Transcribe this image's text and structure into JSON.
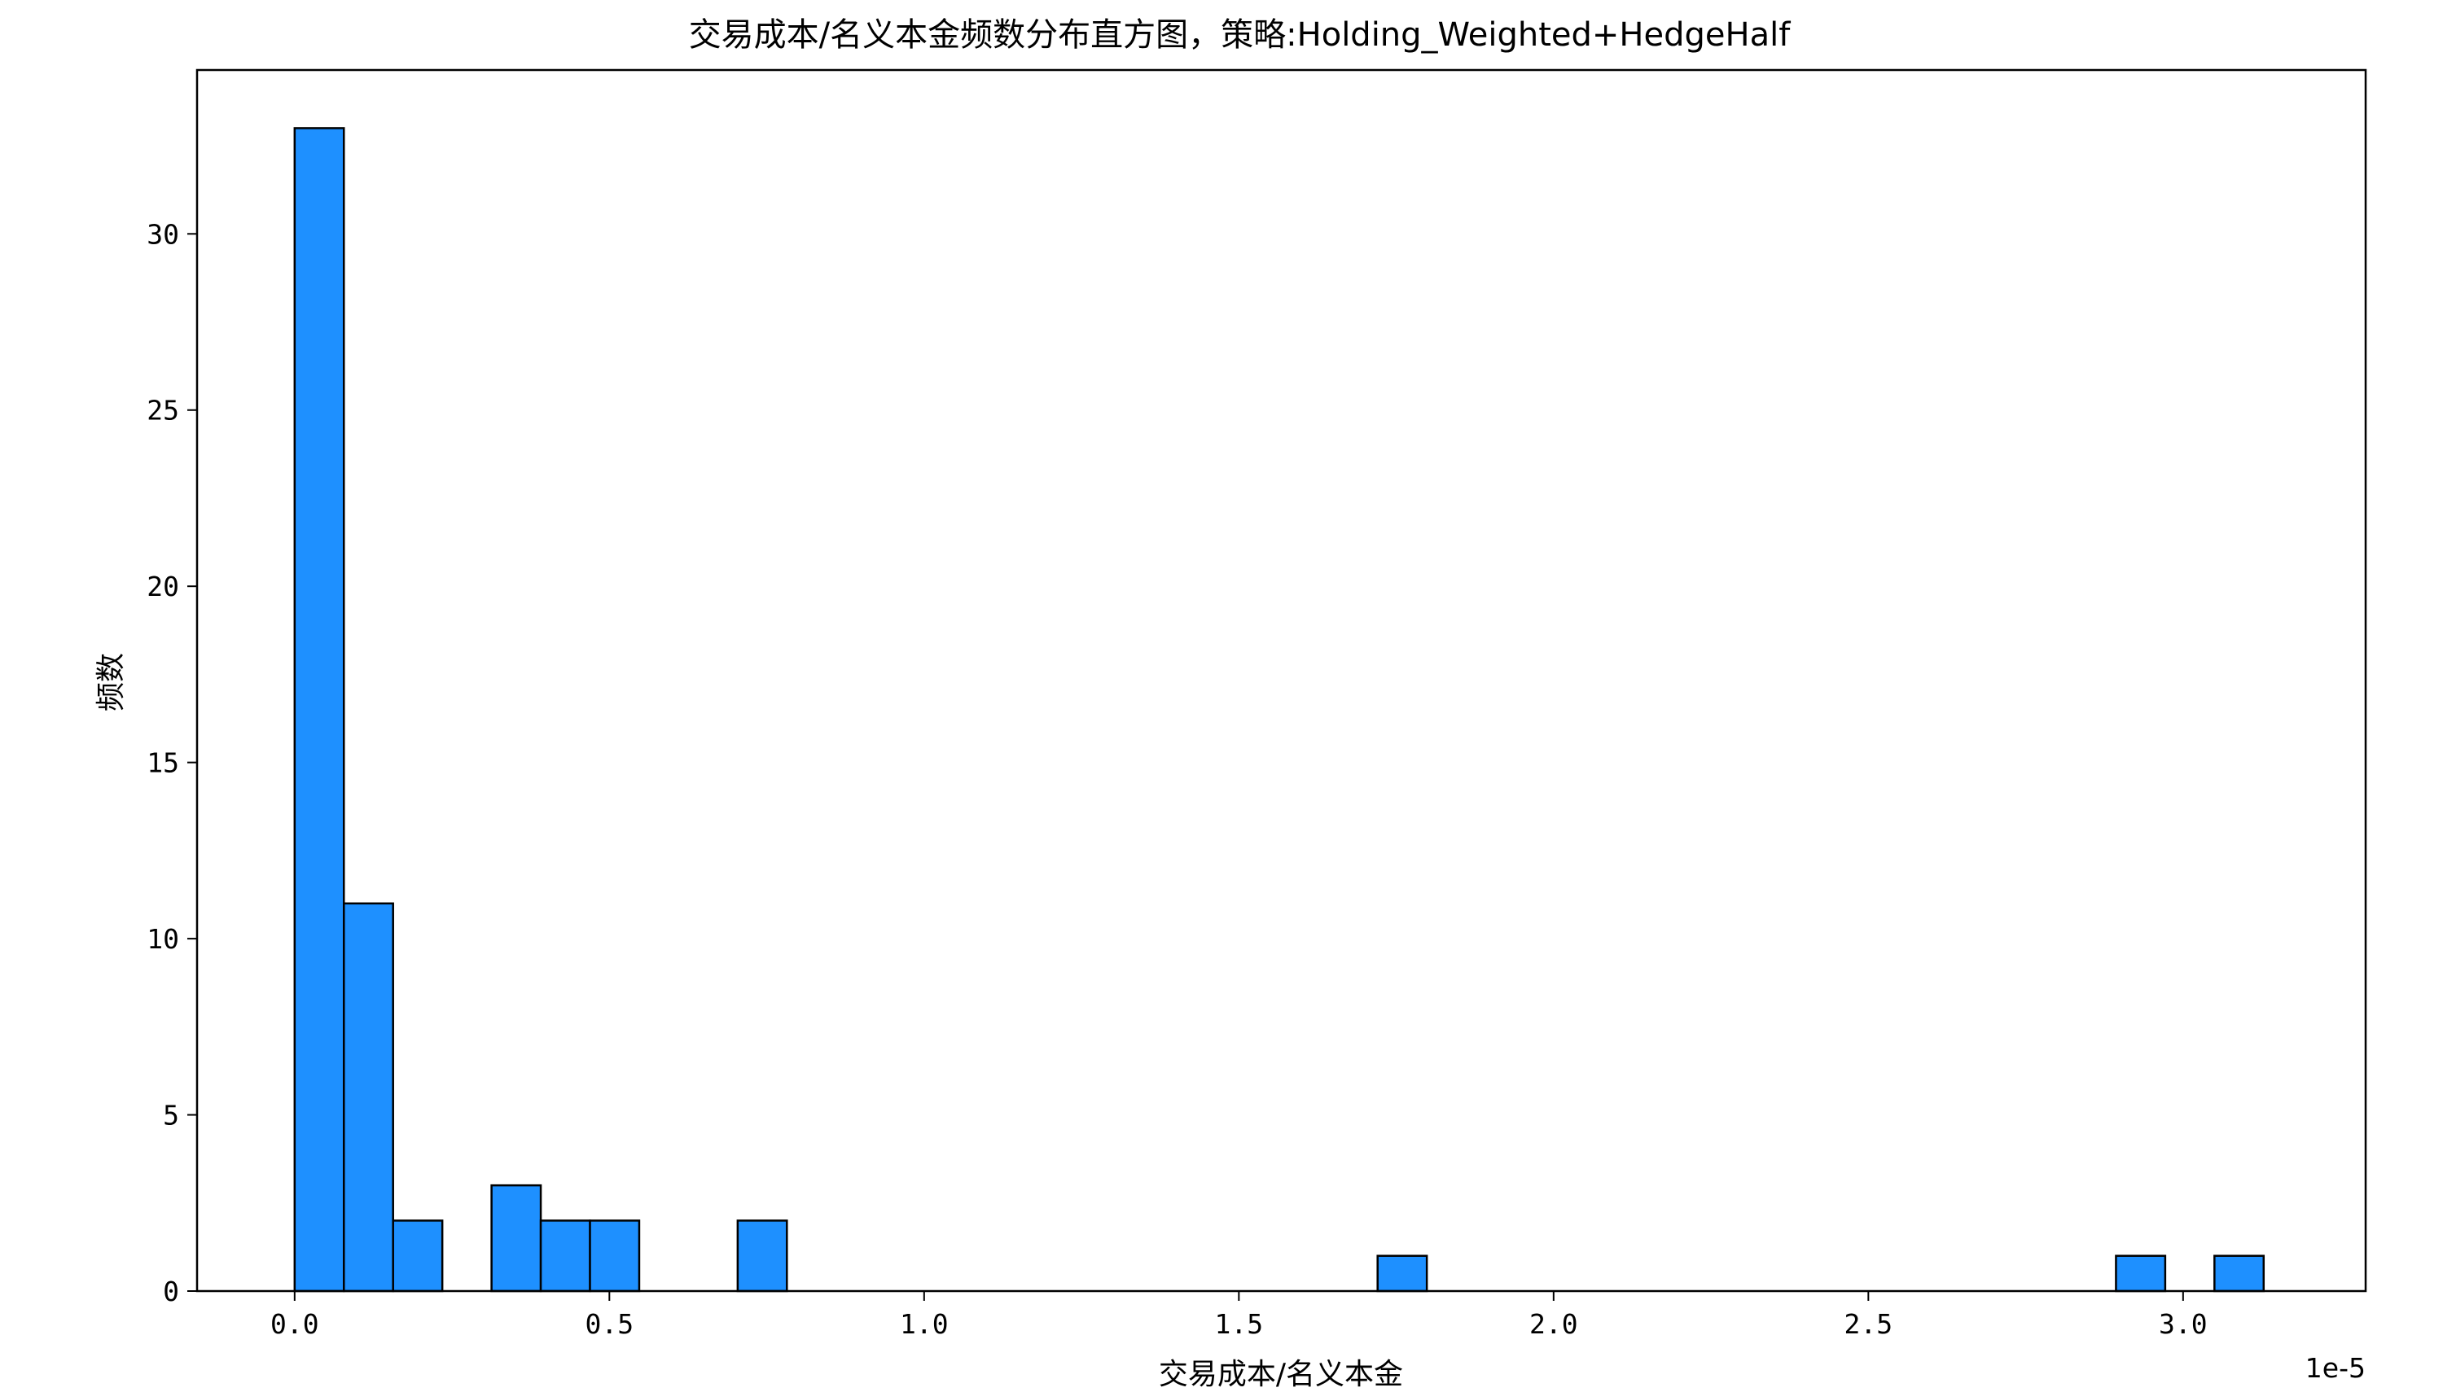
{
  "chart_data": {
    "type": "bar",
    "title": "交易成本/名义本金频数分布直方图，策略:Holding_Weighted+HedgeHalf",
    "xlabel": "交易成本/名义本金",
    "ylabel": "频数",
    "x_offset_label": "1e-5",
    "xlim": [
      -0.155,
      3.29
    ],
    "ylim": [
      0,
      34.65
    ],
    "xticks": [
      0.0,
      0.5,
      1.0,
      1.5,
      2.0,
      2.5,
      3.0
    ],
    "xtick_labels": [
      "0.0",
      "0.5",
      "1.0",
      "1.5",
      "2.0",
      "2.5",
      "3.0"
    ],
    "yticks": [
      0,
      5,
      10,
      15,
      20,
      25,
      30
    ],
    "ytick_labels": [
      "0",
      "5",
      "10",
      "15",
      "20",
      "25",
      "30"
    ],
    "bin_start": 0.0,
    "bin_width": 0.0782,
    "values": [
      33,
      11,
      2,
      0,
      3,
      2,
      2,
      0,
      0,
      2,
      0,
      0,
      0,
      0,
      0,
      0,
      0,
      0,
      0,
      0,
      0,
      0,
      1,
      0,
      0,
      0,
      0,
      0,
      0,
      0,
      0,
      0,
      0,
      0,
      0,
      0,
      0,
      1,
      0,
      1
    ],
    "bar_color": "#1e90ff",
    "edge_color": "#000000",
    "grid": false,
    "legend": false
  }
}
